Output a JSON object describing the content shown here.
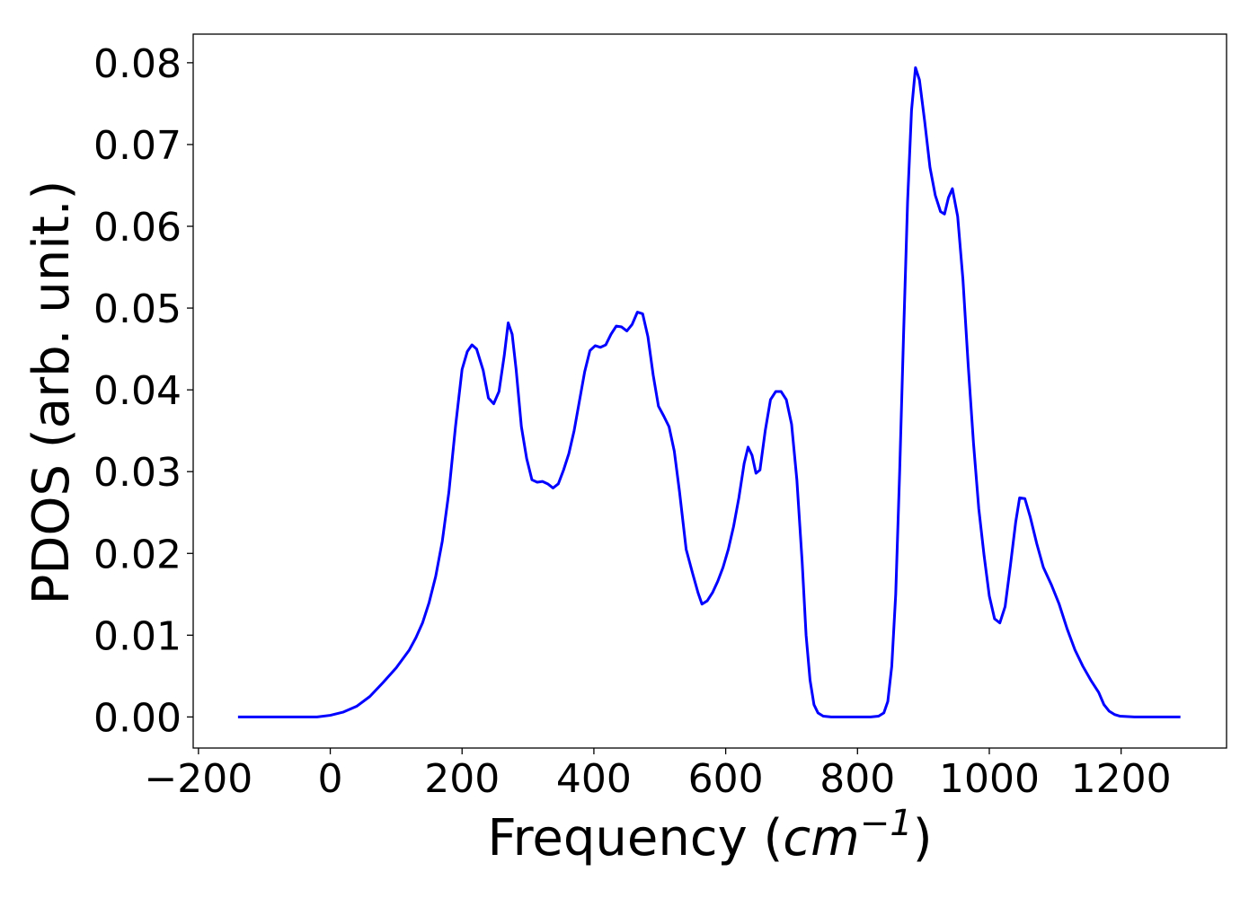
{
  "chart_data": {
    "type": "line",
    "xlabel": "Frequency",
    "xlabel_unit": "cm",
    "xlabel_unit_exponent": "−1",
    "ylabel": "PDOS (arb. unit.)",
    "xlim": [
      -208,
      1360
    ],
    "ylim": [
      -0.0038,
      0.0835
    ],
    "x_ticks": [
      -200,
      0,
      200,
      400,
      600,
      800,
      1000,
      1200
    ],
    "x_tick_labels": [
      "−200",
      "0",
      "200",
      "400",
      "600",
      "800",
      "1000",
      "1200"
    ],
    "y_ticks": [
      0.0,
      0.01,
      0.02,
      0.03,
      0.04,
      0.05,
      0.06,
      0.07,
      0.08
    ],
    "y_tick_labels": [
      "0.00",
      "0.01",
      "0.02",
      "0.03",
      "0.04",
      "0.05",
      "0.06",
      "0.07",
      "0.08"
    ],
    "grid": false,
    "legend": "none",
    "series": [
      {
        "color": "#0000ff",
        "x": [
          -140,
          -100,
          -60,
          -20,
          0,
          20,
          40,
          60,
          80,
          100,
          120,
          130,
          140,
          150,
          160,
          170,
          180,
          190,
          200,
          208,
          215,
          222,
          232,
          240,
          248,
          256,
          264,
          270,
          276,
          282,
          290,
          298,
          306,
          314,
          322,
          330,
          338,
          346,
          354,
          362,
          370,
          378,
          386,
          394,
          402,
          410,
          418,
          426,
          434,
          442,
          450,
          458,
          466,
          474,
          482,
          490,
          498,
          506,
          514,
          522,
          530,
          540,
          550,
          558,
          564,
          572,
          580,
          588,
          596,
          604,
          612,
          620,
          628,
          634,
          640,
          646,
          652,
          660,
          668,
          676,
          684,
          692,
          700,
          708,
          716,
          722,
          728,
          734,
          740,
          748,
          760,
          790,
          820,
          832,
          840,
          846,
          852,
          858,
          864,
          870,
          876,
          882,
          888,
          894,
          902,
          910,
          918,
          926,
          932,
          938,
          944,
          952,
          960,
          968,
          976,
          984,
          992,
          1000,
          1008,
          1016,
          1024,
          1032,
          1040,
          1046,
          1054,
          1062,
          1072,
          1082,
          1094,
          1106,
          1118,
          1130,
          1142,
          1154,
          1166,
          1174,
          1182,
          1190,
          1198,
          1220,
          1260,
          1290
        ],
        "values": [
          0.0,
          0.0,
          0.0,
          0.0,
          0.0002,
          0.0006,
          0.0013,
          0.0025,
          0.0042,
          0.006,
          0.0082,
          0.0097,
          0.0115,
          0.014,
          0.0172,
          0.0215,
          0.0275,
          0.0355,
          0.0425,
          0.0447,
          0.0455,
          0.045,
          0.0424,
          0.039,
          0.0383,
          0.0398,
          0.0442,
          0.0482,
          0.0468,
          0.0425,
          0.0355,
          0.0316,
          0.029,
          0.0287,
          0.0288,
          0.0285,
          0.028,
          0.0285,
          0.0302,
          0.0322,
          0.035,
          0.0386,
          0.0422,
          0.0448,
          0.0454,
          0.0452,
          0.0455,
          0.0468,
          0.0478,
          0.0477,
          0.0472,
          0.048,
          0.0495,
          0.0493,
          0.0465,
          0.0418,
          0.038,
          0.0368,
          0.0355,
          0.0325,
          0.0275,
          0.0205,
          0.0175,
          0.0152,
          0.0138,
          0.0142,
          0.0152,
          0.0166,
          0.0183,
          0.0205,
          0.0233,
          0.0268,
          0.031,
          0.033,
          0.032,
          0.0298,
          0.0302,
          0.035,
          0.0388,
          0.0398,
          0.0398,
          0.0388,
          0.0358,
          0.029,
          0.019,
          0.01,
          0.0045,
          0.0015,
          0.0005,
          0.0001,
          0.0,
          0.0,
          0.0,
          0.0001,
          0.0005,
          0.0019,
          0.0062,
          0.015,
          0.03,
          0.047,
          0.063,
          0.0742,
          0.0794,
          0.0779,
          0.0728,
          0.0672,
          0.0638,
          0.0618,
          0.0615,
          0.0635,
          0.0646,
          0.0612,
          0.0535,
          0.043,
          0.0335,
          0.0255,
          0.0198,
          0.0148,
          0.012,
          0.0115,
          0.0135,
          0.0185,
          0.0238,
          0.0268,
          0.0267,
          0.0245,
          0.0212,
          0.0183,
          0.0162,
          0.0138,
          0.0108,
          0.0082,
          0.0062,
          0.0045,
          0.003,
          0.0015,
          0.0007,
          0.0003,
          0.0001,
          0.0,
          0.0,
          0.0
        ]
      }
    ]
  }
}
